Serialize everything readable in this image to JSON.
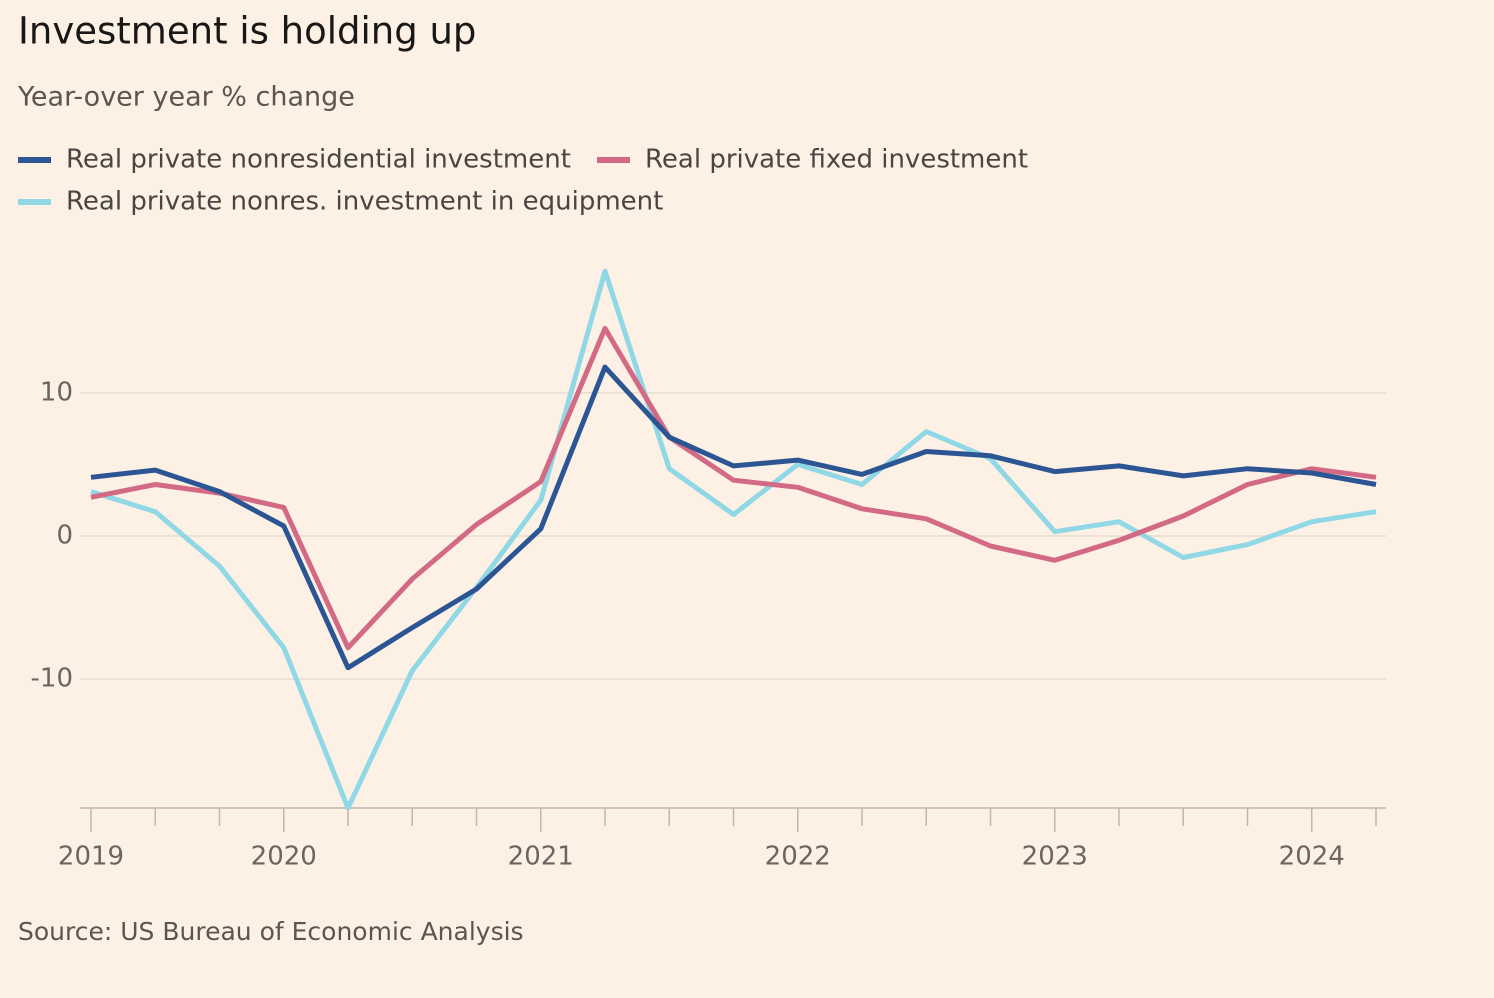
{
  "chart_data": {
    "type": "line",
    "title": "Investment is holding up",
    "subtitle": "Year-over year % change",
    "source": "Source: US Bureau of Economic Analysis",
    "categories": [
      "2019",
      null,
      null,
      "2020",
      null,
      null,
      null,
      "2021",
      null,
      null,
      null,
      "2022",
      null,
      null,
      null,
      "2023",
      null,
      null,
      null,
      "2024",
      null
    ],
    "series": [
      {
        "name": "Real private nonresidential investment",
        "color": "#2c5593",
        "values": [
          4.1,
          4.6,
          3.1,
          0.7,
          -9.2,
          -6.4,
          -3.7,
          0.5,
          11.8,
          6.9,
          4.9,
          5.3,
          4.3,
          5.9,
          5.6,
          4.5,
          4.9,
          4.2,
          4.7,
          4.4,
          3.6
        ]
      },
      {
        "name": "Real private fixed investment",
        "color": "#d36a85",
        "values": [
          2.7,
          3.6,
          3.0,
          2.0,
          -7.8,
          -3.0,
          0.8,
          3.8,
          14.5,
          6.9,
          3.9,
          3.4,
          1.9,
          1.2,
          -0.7,
          -1.7,
          -0.3,
          1.4,
          3.6,
          4.7,
          4.1
        ]
      },
      {
        "name": "Real private nonres. investment in equipment",
        "color": "#91d8e6",
        "values": [
          3.1,
          1.7,
          -2.1,
          -7.8,
          -19.0,
          -9.4,
          -3.6,
          2.5,
          18.5,
          4.7,
          1.5,
          5.0,
          3.6,
          7.3,
          5.4,
          0.3,
          1.0,
          -1.5,
          -0.6,
          1.0,
          1.7
        ]
      }
    ],
    "ylim": [
      -19,
      19
    ],
    "yticks": [
      -10,
      0,
      10
    ],
    "grid": true
  }
}
